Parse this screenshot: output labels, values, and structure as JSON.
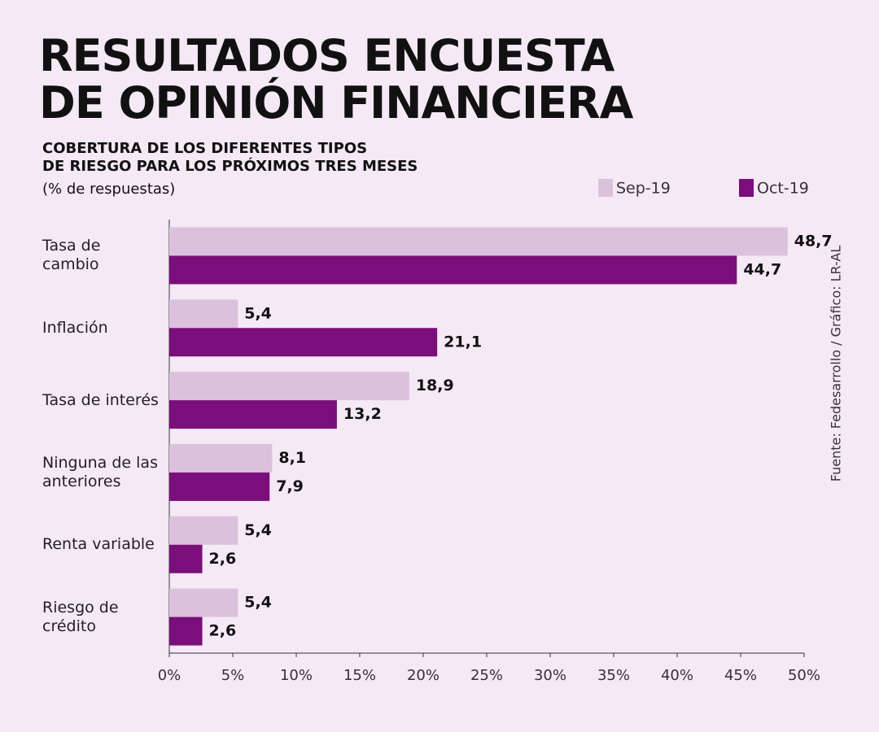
{
  "chart_data": {
    "type": "hbar",
    "title": "RESULTADOS ENCUESTA\nDE OPINIÓN FINANCIERA",
    "subtitle": "COBERTURA DE LOS DIFERENTES TIPOS\nDE RIESGO PARA LOS PRÓXIMOS TRES MESES",
    "unit_label": "(% de respuestas)",
    "source": "Fuente: Fedesarrollo / Gráfico: LR-AL",
    "categories": [
      "Tasa de\ncambio",
      "Inflación",
      "Tasa de interés",
      "Ninguna de las\nanteriores",
      "Renta variable",
      "Riesgo de\ncrédito"
    ],
    "series": [
      {
        "name": "Sep-19",
        "color": "#dcc1dc",
        "values": [
          48.7,
          5.4,
          18.9,
          8.1,
          5.4,
          5.4
        ],
        "value_labels": [
          "48,7",
          "5,4",
          "18,9",
          "8,1",
          "5,4",
          "5,4"
        ]
      },
      {
        "name": "Oct-19",
        "color": "#7a0e7a",
        "values": [
          44.7,
          21.1,
          13.2,
          7.9,
          2.6,
          2.6
        ],
        "value_labels": [
          "44,7",
          "21,1",
          "13,2",
          "7,9",
          "2,6",
          "2,6"
        ]
      }
    ],
    "xlim": [
      0,
      50
    ],
    "xticks": [
      {
        "value": 0,
        "label": "0%"
      },
      {
        "value": 5,
        "label": "5%"
      },
      {
        "value": 10,
        "label": "10%"
      },
      {
        "value": 15,
        "label": "15%"
      },
      {
        "value": 20,
        "label": "20%"
      },
      {
        "value": 25,
        "label": "25%"
      },
      {
        "value": 30,
        "label": "30%"
      },
      {
        "value": 35,
        "label": "35%"
      },
      {
        "value": 40,
        "label": "40%"
      },
      {
        "value": 45,
        "label": "45%"
      },
      {
        "value": 50,
        "label": "50%"
      }
    ],
    "grid": false,
    "legend": "top-right"
  }
}
